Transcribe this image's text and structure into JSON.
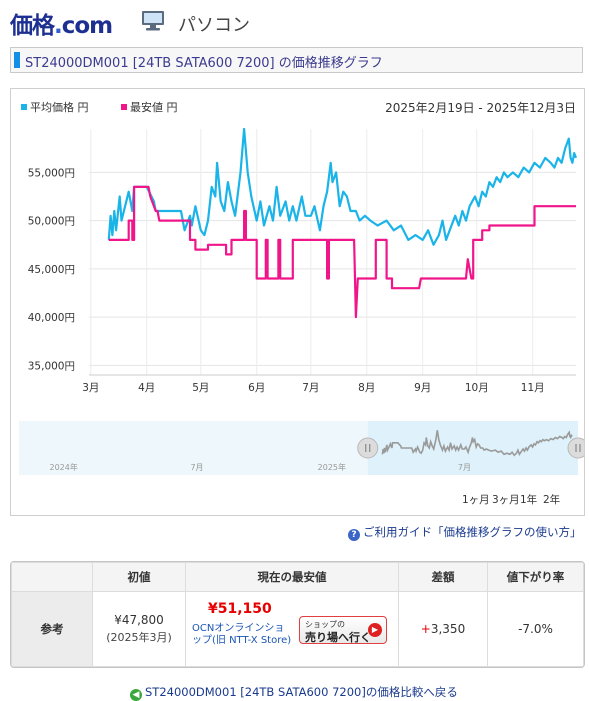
{
  "site": {
    "logo_main": "価格",
    "logo_dot": ".",
    "logo_com": "com",
    "category": "パソコン",
    "category_icon": "pc-monitor-icon"
  },
  "page_title": "ST24000DM001 [24TB SATA600 7200] の価格推移グラフ",
  "chart_data": {
    "type": "line",
    "date_range": "2025年2月19日 - 2025年12月3日",
    "x_unit": "date",
    "x_range": [
      "2025-02-19",
      "2025-12-03"
    ],
    "visible_range": [
      "2025-02-28",
      "2025-11-25"
    ],
    "ylim": [
      34000,
      59500
    ],
    "y_ticks": [
      35000,
      40000,
      45000,
      50000,
      55000
    ],
    "y_tick_labels": [
      "35,000円",
      "40,000円",
      "45,000円",
      "50,000円",
      "55,000円"
    ],
    "x_tick_labels": [
      "3月",
      "4月",
      "5月",
      "6月",
      "7月",
      "8月",
      "9月",
      "10月",
      "11月"
    ],
    "x_tick_dates": [
      "2025-03-01",
      "2025-04-01",
      "2025-05-01",
      "2025-06-01",
      "2025-07-01",
      "2025-08-01",
      "2025-09-01",
      "2025-10-01",
      "2025-11-01"
    ],
    "grid": true,
    "legend_position": "top-left",
    "series": [
      {
        "name": "平均価格 円",
        "color": "#1ab4e8",
        "points": [
          [
            "2025-03-11",
            48000
          ],
          [
            "2025-03-12",
            50500
          ],
          [
            "2025-03-13",
            48500
          ],
          [
            "2025-03-14",
            51000
          ],
          [
            "2025-03-15",
            49000
          ],
          [
            "2025-03-17",
            52500
          ],
          [
            "2025-03-18",
            50000
          ],
          [
            "2025-03-20",
            51500
          ],
          [
            "2025-03-22",
            53000
          ],
          [
            "2025-03-24",
            51000
          ],
          [
            "2025-03-25",
            53500
          ],
          [
            "2025-04-01",
            53500
          ],
          [
            "2025-04-05",
            52000
          ],
          [
            "2025-04-06",
            51000
          ],
          [
            "2025-04-15",
            51000
          ],
          [
            "2025-04-20",
            51000
          ],
          [
            "2025-04-22",
            49000
          ],
          [
            "2025-04-25",
            50500
          ],
          [
            "2025-04-26",
            49500
          ],
          [
            "2025-04-28",
            51500
          ],
          [
            "2025-05-01",
            49000
          ],
          [
            "2025-05-03",
            48500
          ],
          [
            "2025-05-05",
            50000
          ],
          [
            "2025-05-07",
            53500
          ],
          [
            "2025-05-09",
            52500
          ],
          [
            "2025-05-10",
            56000
          ],
          [
            "2025-05-12",
            52000
          ],
          [
            "2025-05-14",
            51000
          ],
          [
            "2025-05-16",
            54000
          ],
          [
            "2025-05-18",
            52000
          ],
          [
            "2025-05-20",
            50500
          ],
          [
            "2025-05-23",
            55000
          ],
          [
            "2025-05-25",
            59500
          ],
          [
            "2025-05-27",
            55000
          ],
          [
            "2025-05-29",
            52500
          ],
          [
            "2025-06-01",
            50000
          ],
          [
            "2025-06-03",
            52000
          ],
          [
            "2025-06-05",
            49500
          ],
          [
            "2025-06-08",
            51500
          ],
          [
            "2025-06-10",
            50000
          ],
          [
            "2025-06-12",
            53500
          ],
          [
            "2025-06-14",
            50500
          ],
          [
            "2025-06-17",
            52000
          ],
          [
            "2025-06-19",
            50000
          ],
          [
            "2025-06-21",
            51500
          ],
          [
            "2025-06-23",
            50000
          ],
          [
            "2025-06-26",
            52500
          ],
          [
            "2025-06-28",
            50500
          ],
          [
            "2025-07-01",
            50500
          ],
          [
            "2025-07-03",
            51500
          ],
          [
            "2025-07-06",
            49000
          ],
          [
            "2025-07-08",
            51500
          ],
          [
            "2025-07-10",
            53000
          ],
          [
            "2025-07-12",
            56000
          ],
          [
            "2025-07-13",
            54000
          ],
          [
            "2025-07-15",
            55000
          ],
          [
            "2025-07-17",
            51500
          ],
          [
            "2025-07-19",
            53000
          ],
          [
            "2025-07-21",
            52500
          ],
          [
            "2025-07-23",
            51000
          ],
          [
            "2025-07-26",
            51000
          ],
          [
            "2025-07-28",
            50000
          ],
          [
            "2025-07-31",
            50500
          ],
          [
            "2025-08-03",
            50000
          ],
          [
            "2025-08-07",
            49500
          ],
          [
            "2025-08-12",
            50000
          ],
          [
            "2025-08-16",
            49000
          ],
          [
            "2025-08-20",
            49500
          ],
          [
            "2025-08-24",
            48000
          ],
          [
            "2025-08-28",
            48500
          ],
          [
            "2025-09-01",
            48000
          ],
          [
            "2025-09-04",
            49000
          ],
          [
            "2025-09-07",
            47500
          ],
          [
            "2025-09-10",
            48500
          ],
          [
            "2025-09-12",
            50000
          ],
          [
            "2025-09-14",
            48000
          ],
          [
            "2025-09-17",
            49500
          ],
          [
            "2025-09-19",
            50500
          ],
          [
            "2025-09-21",
            49500
          ],
          [
            "2025-09-23",
            51000
          ],
          [
            "2025-09-25",
            50000
          ],
          [
            "2025-09-27",
            51500
          ],
          [
            "2025-09-30",
            52500
          ],
          [
            "2025-10-02",
            51500
          ],
          [
            "2025-10-04",
            53000
          ],
          [
            "2025-10-06",
            52500
          ],
          [
            "2025-10-08",
            54000
          ],
          [
            "2025-10-10",
            53500
          ],
          [
            "2025-10-12",
            54500
          ],
          [
            "2025-10-14",
            54000
          ],
          [
            "2025-10-16",
            55000
          ],
          [
            "2025-10-18",
            54500
          ],
          [
            "2025-10-21",
            55000
          ],
          [
            "2025-10-24",
            54500
          ],
          [
            "2025-10-27",
            55500
          ],
          [
            "2025-10-30",
            55000
          ],
          [
            "2025-11-02",
            56000
          ],
          [
            "2025-11-05",
            55500
          ],
          [
            "2025-11-08",
            56500
          ],
          [
            "2025-11-11",
            56000
          ],
          [
            "2025-11-13",
            55500
          ],
          [
            "2025-11-15",
            56500
          ],
          [
            "2025-11-17",
            56000
          ],
          [
            "2025-11-19",
            57500
          ],
          [
            "2025-11-21",
            58500
          ],
          [
            "2025-11-22",
            56500
          ],
          [
            "2025-11-23",
            56000
          ],
          [
            "2025-11-24",
            57000
          ],
          [
            "2025-11-25",
            56500
          ]
        ]
      },
      {
        "name": "最安値 円",
        "color": "#f0168a",
        "points": [
          [
            "2025-03-11",
            48000
          ],
          [
            "2025-03-22",
            48000
          ],
          [
            "2025-03-22",
            50000
          ],
          [
            "2025-03-24",
            50000
          ],
          [
            "2025-03-24",
            48000
          ],
          [
            "2025-03-25",
            48000
          ],
          [
            "2025-03-25",
            53500
          ],
          [
            "2025-04-02",
            53500
          ],
          [
            "2025-04-03",
            52500
          ],
          [
            "2025-04-06",
            51000
          ],
          [
            "2025-04-07",
            51000
          ],
          [
            "2025-04-08",
            50000
          ],
          [
            "2025-04-25",
            50000
          ],
          [
            "2025-04-25",
            48000
          ],
          [
            "2025-04-28",
            48000
          ],
          [
            "2025-04-28",
            47000
          ],
          [
            "2025-05-05",
            47000
          ],
          [
            "2025-05-05",
            47500
          ],
          [
            "2025-05-15",
            47500
          ],
          [
            "2025-05-15",
            46500
          ],
          [
            "2025-05-18",
            46500
          ],
          [
            "2025-05-18",
            48000
          ],
          [
            "2025-05-25",
            48000
          ],
          [
            "2025-05-25",
            51000
          ],
          [
            "2025-05-26",
            51000
          ],
          [
            "2025-05-26",
            48000
          ],
          [
            "2025-06-01",
            48000
          ],
          [
            "2025-06-01",
            44000
          ],
          [
            "2025-06-06",
            44000
          ],
          [
            "2025-06-06",
            48000
          ],
          [
            "2025-06-07",
            48000
          ],
          [
            "2025-06-07",
            44000
          ],
          [
            "2025-06-13",
            44000
          ],
          [
            "2025-06-13",
            48000
          ],
          [
            "2025-06-14",
            48000
          ],
          [
            "2025-06-14",
            44000
          ],
          [
            "2025-06-21",
            44000
          ],
          [
            "2025-06-21",
            48000
          ],
          [
            "2025-07-10",
            48000
          ],
          [
            "2025-07-10",
            44000
          ],
          [
            "2025-07-11",
            44000
          ],
          [
            "2025-07-11",
            48000
          ],
          [
            "2025-07-25",
            48000
          ],
          [
            "2025-07-26",
            40000
          ],
          [
            "2025-07-27",
            44000
          ],
          [
            "2025-08-06",
            44000
          ],
          [
            "2025-08-06",
            48000
          ],
          [
            "2025-08-12",
            48000
          ],
          [
            "2025-08-12",
            44000
          ],
          [
            "2025-08-15",
            44000
          ],
          [
            "2025-08-15",
            43000
          ],
          [
            "2025-08-30",
            43000
          ],
          [
            "2025-08-31",
            44000
          ],
          [
            "2025-09-25",
            44000
          ],
          [
            "2025-09-26",
            46000
          ],
          [
            "2025-09-28",
            44000
          ],
          [
            "2025-09-29",
            44000
          ],
          [
            "2025-09-29",
            48000
          ],
          [
            "2025-10-04",
            48000
          ],
          [
            "2025-10-04",
            49000
          ],
          [
            "2025-10-08",
            49000
          ],
          [
            "2025-10-08",
            49500
          ],
          [
            "2025-11-02",
            49500
          ],
          [
            "2025-11-02",
            51500
          ],
          [
            "2025-11-25",
            51500
          ]
        ]
      }
    ]
  },
  "navigator": {
    "labels": [
      "2024年",
      "7月",
      "2025年",
      "7月"
    ],
    "label_dates": [
      "2024-01-01",
      "2024-07-01",
      "2025-01-01",
      "2025-07-01"
    ],
    "range": [
      "2023-11-01",
      "2025-12-03"
    ],
    "selection": [
      "2025-02-19",
      "2025-12-03"
    ]
  },
  "range_buttons": [
    "1ヶ月",
    "3ヶ月",
    "1年",
    "2年"
  ],
  "guide_link": "ご利用ガイド「価格推移グラフの使い方」",
  "reference": {
    "row_label": "参考",
    "headers": [
      "初値",
      "現在の最安値",
      "差額",
      "値下がり率"
    ],
    "initial_price": "¥47,800",
    "initial_date": "(2025年3月)",
    "current_low": "¥51,150",
    "shop_name": "OCNオンラインショップ(旧 NTT-X Store)",
    "shop_button_small": "ショップの",
    "shop_button_main": "売り場へ行く",
    "diff_sign": "+",
    "diff_value": "3,350",
    "drop_rate": "-7.0%"
  },
  "back_link": "ST24000DM001 [24TB SATA600 7200]の価格比較へ戻る"
}
